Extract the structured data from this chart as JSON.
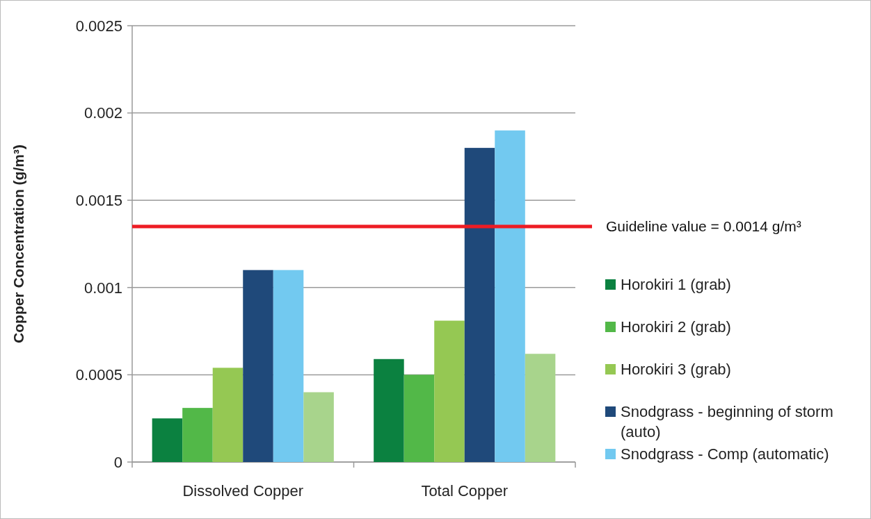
{
  "chart_data": {
    "type": "bar",
    "ylabel": "Copper Concentration (g/m³)",
    "categories": [
      "Dissolved Copper",
      "Total Copper"
    ],
    "series": [
      {
        "name": "Horokiri 1 (grab)",
        "color": "#0b8140",
        "values": [
          0.00025,
          0.00059
        ]
      },
      {
        "name": "Horokiri 2 (grab)",
        "color": "#52b848",
        "values": [
          0.00031,
          0.0005
        ]
      },
      {
        "name": "Horokiri 3 (grab)",
        "color": "#95c853",
        "values": [
          0.00054,
          0.00081
        ]
      },
      {
        "name": "Snodgrass - beginning of storm (auto)",
        "color": "#1f497a",
        "values": [
          0.0011,
          0.0018
        ]
      },
      {
        "name": "Snodgrass - Comp (automatic)",
        "color": "#72c9f0",
        "values": [
          0.0011,
          0.0019
        ]
      },
      {
        "color": "#a8d48c",
        "values": [
          0.0004,
          0.00062
        ]
      }
    ],
    "ylim": [
      0,
      0.0025
    ],
    "yticks": [
      0,
      0.0005,
      0.001,
      0.0015,
      0.002,
      0.0025
    ],
    "grid": "y",
    "legend": "right",
    "ref_lines": [
      {
        "axis": "y",
        "value": 0.00135,
        "label": "Guideline value = 0.0014 g/m³",
        "color": "#ed1c24"
      }
    ]
  }
}
